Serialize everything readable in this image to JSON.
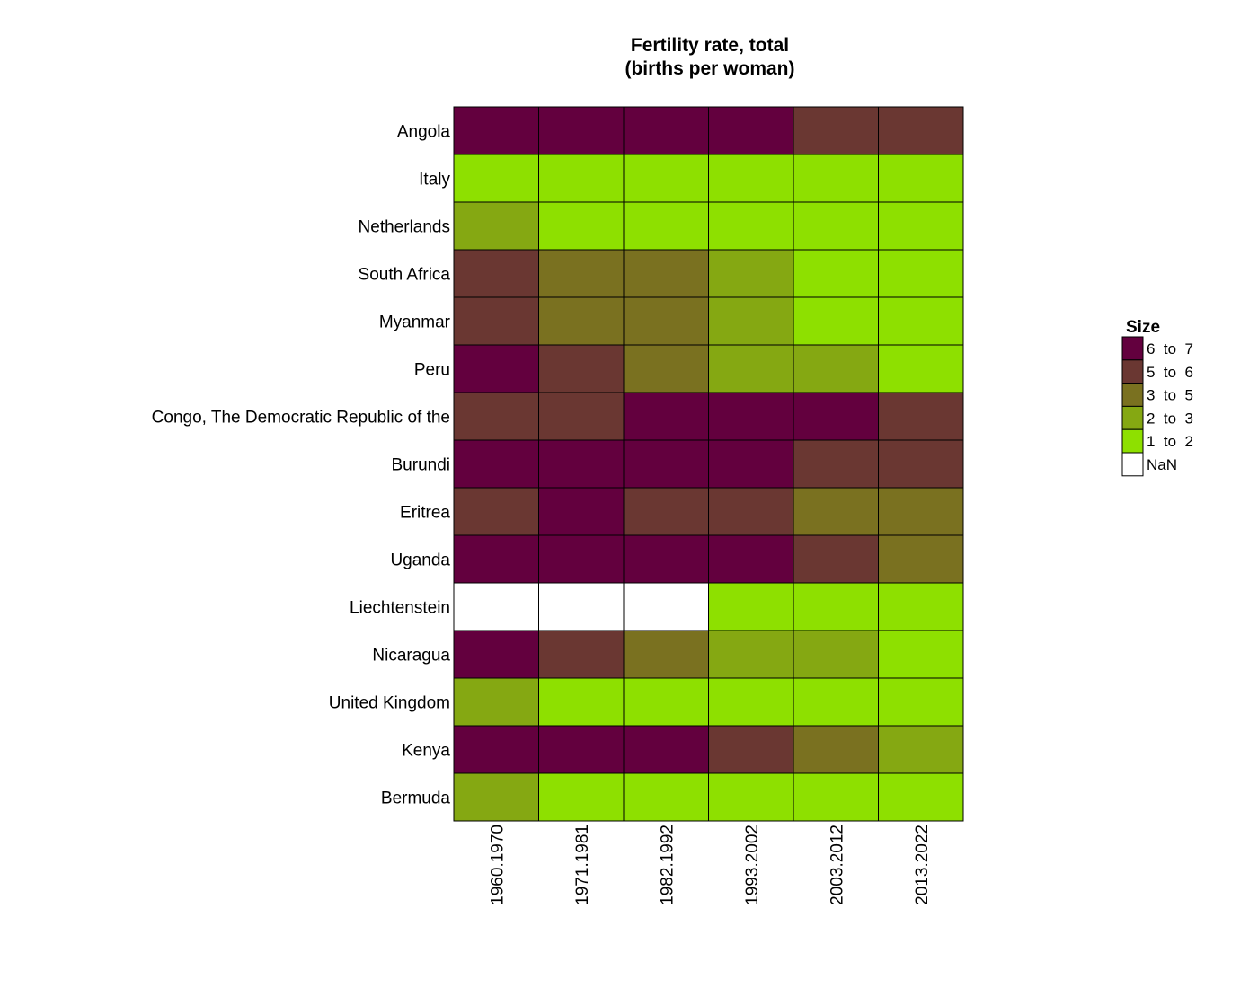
{
  "chart_data": {
    "type": "heatmap",
    "title": [
      "Fertility rate, total",
      "(births per woman)"
    ],
    "rows": [
      "Angola",
      "Italy",
      "Netherlands",
      "South Africa",
      "Myanmar",
      "Peru",
      "Congo, The Democratic Republic of the",
      "Burundi",
      "Eritrea",
      "Uganda",
      "Liechtenstein",
      "Nicaragua",
      "United Kingdom",
      "Kenya",
      "Bermuda"
    ],
    "columns": [
      "1960.1970",
      "1971.1981",
      "1982.1992",
      "1993.2002",
      "2003.2012",
      "2013.2022"
    ],
    "cells": [
      [
        "6 to 7",
        "6 to 7",
        "6 to 7",
        "6 to 7",
        "5 to 6",
        "5 to 6"
      ],
      [
        "1 to 2",
        "1 to 2",
        "1 to 2",
        "1 to 2",
        "1 to 2",
        "1 to 2"
      ],
      [
        "2 to 3",
        "1 to 2",
        "1 to 2",
        "1 to 2",
        "1 to 2",
        "1 to 2"
      ],
      [
        "5 to 6",
        "3 to 5",
        "3 to 5",
        "2 to 3",
        "1 to 2",
        "1 to 2"
      ],
      [
        "5 to 6",
        "3 to 5",
        "3 to 5",
        "2 to 3",
        "1 to 2",
        "1 to 2"
      ],
      [
        "6 to 7",
        "5 to 6",
        "3 to 5",
        "2 to 3",
        "2 to 3",
        "1 to 2"
      ],
      [
        "5 to 6",
        "5 to 6",
        "6 to 7",
        "6 to 7",
        "6 to 7",
        "5 to 6"
      ],
      [
        "6 to 7",
        "6 to 7",
        "6 to 7",
        "6 to 7",
        "5 to 6",
        "5 to 6"
      ],
      [
        "5 to 6",
        "6 to 7",
        "5 to 6",
        "5 to 6",
        "3 to 5",
        "3 to 5"
      ],
      [
        "6 to 7",
        "6 to 7",
        "6 to 7",
        "6 to 7",
        "5 to 6",
        "3 to 5"
      ],
      [
        "NaN",
        "NaN",
        "NaN",
        "1 to 2",
        "1 to 2",
        "1 to 2"
      ],
      [
        "6 to 7",
        "5 to 6",
        "3 to 5",
        "2 to 3",
        "2 to 3",
        "1 to 2"
      ],
      [
        "2 to 3",
        "1 to 2",
        "1 to 2",
        "1 to 2",
        "1 to 2",
        "1 to 2"
      ],
      [
        "6 to 7",
        "6 to 7",
        "6 to 7",
        "5 to 6",
        "3 to 5",
        "2 to 3"
      ],
      [
        "2 to 3",
        "1 to 2",
        "1 to 2",
        "1 to 2",
        "1 to 2",
        "1 to 2"
      ]
    ],
    "legend": {
      "title": "Size",
      "placement": "right",
      "items": [
        {
          "label": "6  to  7",
          "key": "6 to 7",
          "color": "#63003e"
        },
        {
          "label": "5  to  6",
          "key": "5 to 6",
          "color": "#6a3732"
        },
        {
          "label": "3  to  5",
          "key": "3 to 5",
          "color": "#7a7120"
        },
        {
          "label": "2  to  3",
          "key": "2 to 3",
          "color": "#85a812"
        },
        {
          "label": "1  to  2",
          "key": "1 to 2",
          "color": "#8ee000"
        },
        {
          "label": "NaN",
          "key": "NaN",
          "color": "#ffffff"
        }
      ]
    }
  }
}
